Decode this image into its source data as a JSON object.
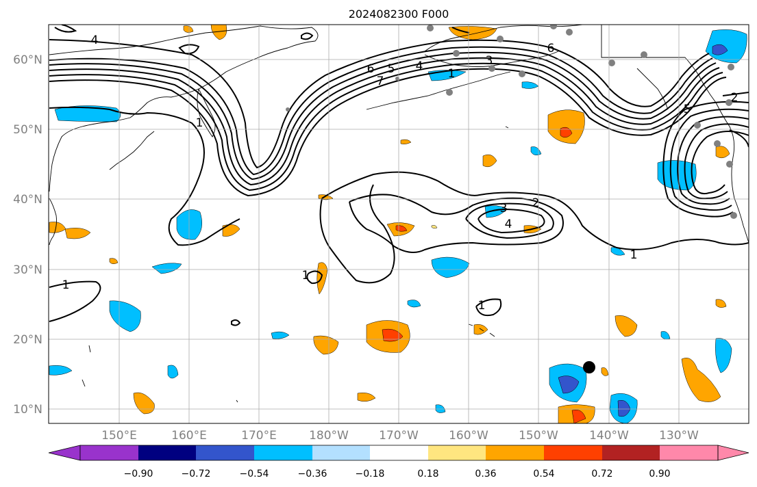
{
  "title": "2024082300 F000",
  "lat_labels": [
    "60°N",
    "50°N",
    "40°N",
    "30°N",
    "20°N",
    "10°N"
  ],
  "lon_labels": [
    "150°E",
    "160°E",
    "170°E",
    "180°W",
    "170°W",
    "160°W",
    "150°W",
    "140°W",
    "130°W"
  ],
  "contour_labels": [
    "4",
    "6",
    "5",
    "4",
    "3",
    "1",
    "7",
    "6",
    "1",
    "2",
    "3",
    "4",
    "1",
    "1",
    "2",
    "5",
    "1",
    "1"
  ],
  "colorbar": {
    "tick_labels": [
      "−0.90",
      "−0.72",
      "−0.54",
      "−0.36",
      "−0.18",
      "0.18",
      "0.36",
      "0.54",
      "0.72",
      "0.90"
    ],
    "colors": [
      "#9933cc",
      "#000080",
      "#3355cc",
      "#00bfff",
      "#b3e0ff",
      "#ffffff",
      "#ffe680",
      "#ffa500",
      "#ff4000",
      "#b22222",
      "#ff88aa",
      "#ff88aa"
    ]
  },
  "colors": {
    "coast": "#000000",
    "grid": "#aaaaaa",
    "label_gray": "#808080",
    "station": "#808080"
  }
}
